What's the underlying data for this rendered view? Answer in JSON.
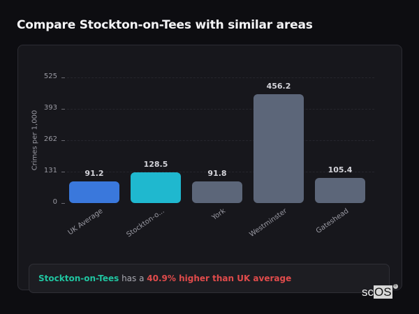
{
  "header": {
    "title": "Compare Stockton-on-Tees with similar areas"
  },
  "chart_data": {
    "type": "bar",
    "title": "",
    "xlabel": "",
    "ylabel": "Crimes per 1,000",
    "categories": [
      "UK Average",
      "Stockton-on-Tees",
      "York",
      "Westminster",
      "Gateshead"
    ],
    "category_labels_displayed": [
      "UK Average",
      "Stockton-o...",
      "York",
      "Westminster",
      "Gateshead"
    ],
    "values": [
      91.2,
      128.5,
      91.8,
      456.2,
      105.4
    ],
    "value_labels": [
      "91.2",
      "128.5",
      "91.8",
      "456.2",
      "105.4"
    ],
    "bar_colors": [
      "#3a78dc",
      "#1fb8cf",
      "#5c6679",
      "#5c6679",
      "#5c6679"
    ],
    "yticks": [
      0,
      131,
      262,
      393,
      525
    ],
    "ylim": [
      0,
      525
    ],
    "grid": true,
    "legend": null
  },
  "insight": {
    "area": "Stockton-on-Tees",
    "middle": " has a ",
    "delta": "40.9% higher than UK average"
  },
  "colors": {
    "background": "#0d0d11",
    "card": "#17171c",
    "highlight_area": "#20c4a0",
    "negative": "#e04b4b"
  },
  "logo": {
    "prefix": "sc",
    "suffix": "OS",
    "mark": "®"
  }
}
